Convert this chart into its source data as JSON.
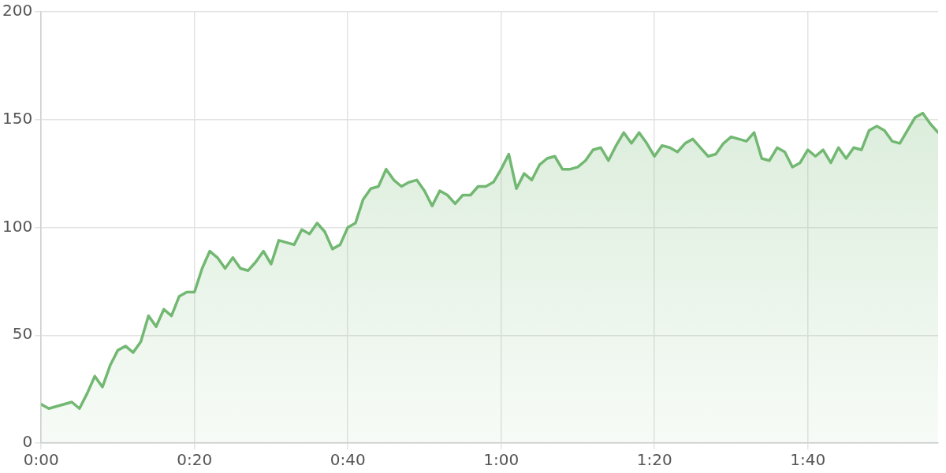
{
  "chart_data": {
    "type": "area",
    "x": [
      0,
      1,
      2,
      3,
      4,
      5,
      6,
      7,
      8,
      9,
      10,
      11,
      12,
      13,
      14,
      15,
      16,
      17,
      18,
      19,
      20,
      21,
      22,
      23,
      24,
      25,
      26,
      27,
      28,
      29,
      30,
      31,
      32,
      33,
      34,
      35,
      36,
      37,
      38,
      39,
      40,
      41,
      42,
      43,
      44,
      45,
      46,
      47,
      48,
      49,
      50,
      51,
      52,
      53,
      54,
      55,
      56,
      57,
      58,
      59,
      60,
      61,
      62,
      63,
      64,
      65,
      66,
      67,
      68,
      69,
      70,
      71,
      72,
      73,
      74,
      75,
      76,
      77,
      78,
      79,
      80,
      81,
      82,
      83,
      84,
      85,
      86,
      87,
      88,
      89,
      90,
      91,
      92,
      93,
      94,
      95,
      96,
      97,
      98,
      99,
      100,
      101,
      102,
      103,
      104,
      105,
      106,
      107,
      108,
      109,
      110,
      111,
      112,
      113,
      114,
      115,
      116,
      117
    ],
    "series": [
      {
        "color": "#72b872",
        "values": [
          18,
          16,
          17,
          18,
          19,
          16,
          23,
          31,
          26,
          36,
          43,
          45,
          42,
          47,
          59,
          54,
          62,
          59,
          68,
          70,
          70,
          81,
          89,
          86,
          81,
          86,
          81,
          80,
          84,
          89,
          83,
          94,
          93,
          92,
          99,
          97,
          102,
          98,
          90,
          92,
          100,
          102,
          113,
          118,
          119,
          127,
          122,
          119,
          121,
          122,
          117,
          110,
          117,
          115,
          111,
          115,
          115,
          119,
          119,
          121,
          127,
          134,
          118,
          125,
          122,
          129,
          132,
          133,
          127,
          127,
          128,
          131,
          136,
          137,
          131,
          138,
          144,
          139,
          144,
          139,
          133,
          138,
          137,
          135,
          139,
          141,
          137,
          133,
          134,
          139,
          142,
          141,
          140,
          144,
          132,
          131,
          137,
          135,
          128,
          130,
          136,
          133,
          136,
          130,
          137,
          132,
          137,
          136,
          145,
          147,
          145,
          140,
          139,
          145,
          151,
          153,
          148,
          144
        ]
      }
    ],
    "xlim": [
      0,
      117
    ],
    "xticks": [
      {
        "value": 0,
        "label": "0:00"
      },
      {
        "value": 20,
        "label": "0:20"
      },
      {
        "value": 40,
        "label": "0:40"
      },
      {
        "value": 60,
        "label": "1:00"
      },
      {
        "value": 80,
        "label": "1:20"
      },
      {
        "value": 100,
        "label": "1:40"
      }
    ],
    "ylim": [
      0,
      200
    ],
    "yticks": [
      0,
      50,
      100,
      150,
      200
    ],
    "grid": true,
    "legend": false,
    "marker": "none",
    "line_style": "solid"
  }
}
